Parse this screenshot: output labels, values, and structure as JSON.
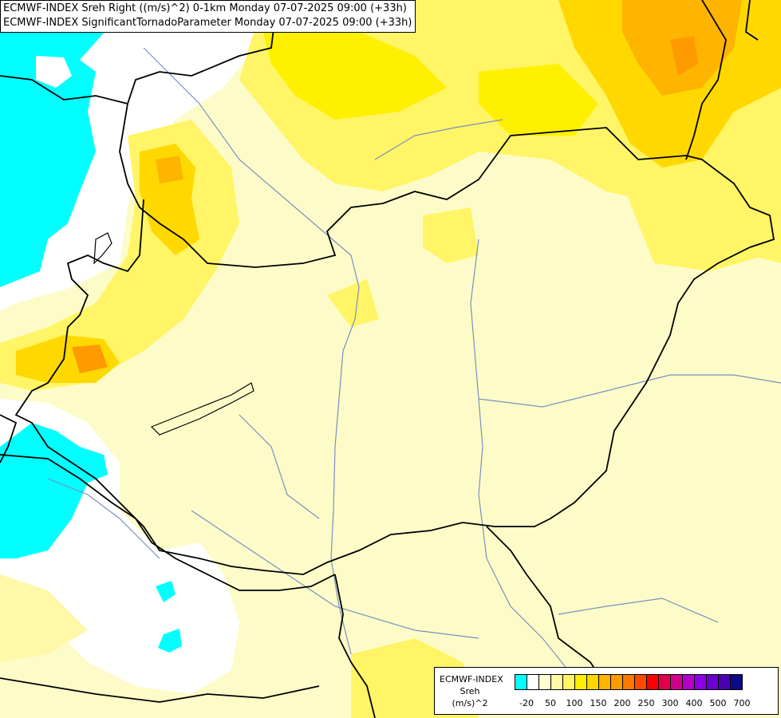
{
  "title": {
    "line1": "ECMWF-INDEX Sreh Right ((m/s)^2) 0-1km Monday 07-07-2025 09:00 (+33h)",
    "line2": "ECMWF-INDEX SignificantTornadoParameter Monday 07-07-2025 09:00 (+33h)"
  },
  "legend": {
    "model": "ECMWF-INDEX",
    "parameter": "Sreh",
    "unit": "(m/s)^2",
    "colors": [
      "#00ffff",
      "#ffffff",
      "#fffcd0",
      "#fff8a8",
      "#fff566",
      "#fff000",
      "#ffd800",
      "#ffb400",
      "#ff9a00",
      "#ff7800",
      "#ff4a00",
      "#ff0000",
      "#e0004a",
      "#d0008a",
      "#b400c8",
      "#8a00e0",
      "#6a00d0",
      "#4a00b0",
      "#0a0a8a"
    ],
    "tick_labels": [
      "-20",
      "50",
      "100",
      "150",
      "200",
      "250",
      "300",
      "400",
      "500",
      "700"
    ]
  }
}
